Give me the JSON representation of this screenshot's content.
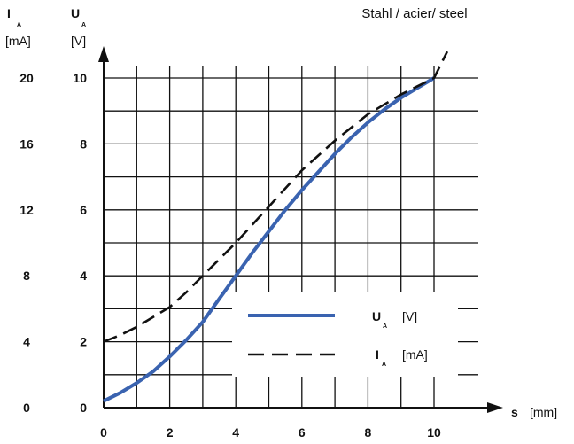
{
  "chart_data": {
    "type": "line",
    "title": "Stahl / acier/ steel",
    "x_axis": {
      "symbol": "s",
      "unit": "[mm]",
      "ticks": [
        0,
        2,
        4,
        6,
        8,
        10
      ],
      "range": [
        0,
        10
      ],
      "tick_labels": [
        "0",
        "2",
        "4",
        "6",
        "8",
        "10"
      ]
    },
    "y_axis_voltage": {
      "symbol": "U",
      "subscript": "A",
      "unit": "[V]",
      "ticks": [
        0,
        2,
        4,
        6,
        8,
        10
      ],
      "range": [
        0,
        10
      ],
      "tick_labels": [
        "0",
        "2",
        "4",
        "6",
        "8",
        "10"
      ]
    },
    "y_axis_current": {
      "symbol": "I",
      "subscript": "A",
      "unit": "[mA]",
      "ticks": [
        0,
        4,
        8,
        12,
        16,
        20
      ],
      "range": [
        0,
        20
      ],
      "tick_labels": [
        "0",
        "4",
        "8",
        "12",
        "16",
        "20"
      ]
    },
    "grid": true,
    "legend_position": "bottom-right",
    "series": [
      {
        "name": "U_A [V]",
        "legend_symbol": "U",
        "legend_subscript": "A",
        "legend_unit": "[V]",
        "axis": "voltage",
        "color": "#3a63b0",
        "style": "solid",
        "x": [
          0,
          0.5,
          1,
          1.5,
          2,
          2.5,
          3,
          3.5,
          4,
          4.5,
          5,
          5.5,
          6,
          6.5,
          7,
          7.5,
          8,
          8.5,
          9,
          9.5,
          10
        ],
        "y": [
          0.2,
          0.45,
          0.75,
          1.1,
          1.55,
          2.05,
          2.6,
          3.3,
          4.0,
          4.7,
          5.35,
          6.0,
          6.6,
          7.15,
          7.7,
          8.2,
          8.65,
          9.05,
          9.4,
          9.7,
          10.0
        ]
      },
      {
        "name": "I_A [mA]",
        "legend_symbol": "I",
        "legend_subscript": "A",
        "legend_unit": "[mA]",
        "axis": "voltage",
        "color": "#111111",
        "style": "dashed",
        "x": [
          0,
          0.5,
          1,
          1.5,
          2,
          2.5,
          3,
          3.5,
          4,
          4.5,
          5,
          5.5,
          6,
          6.5,
          7,
          7.5,
          8,
          8.5,
          9,
          9.5,
          10,
          10.4
        ],
        "y": [
          2.0,
          2.2,
          2.45,
          2.75,
          3.05,
          3.5,
          4.0,
          4.5,
          5.0,
          5.55,
          6.1,
          6.65,
          7.2,
          7.65,
          8.1,
          8.5,
          8.9,
          9.2,
          9.5,
          9.75,
          10.0,
          10.8
        ]
      }
    ]
  },
  "colors": {
    "grid": "#111111",
    "axis": "#111111",
    "voltage_line": "#3a63b0",
    "current_line": "#111111",
    "background": "#ffffff"
  }
}
